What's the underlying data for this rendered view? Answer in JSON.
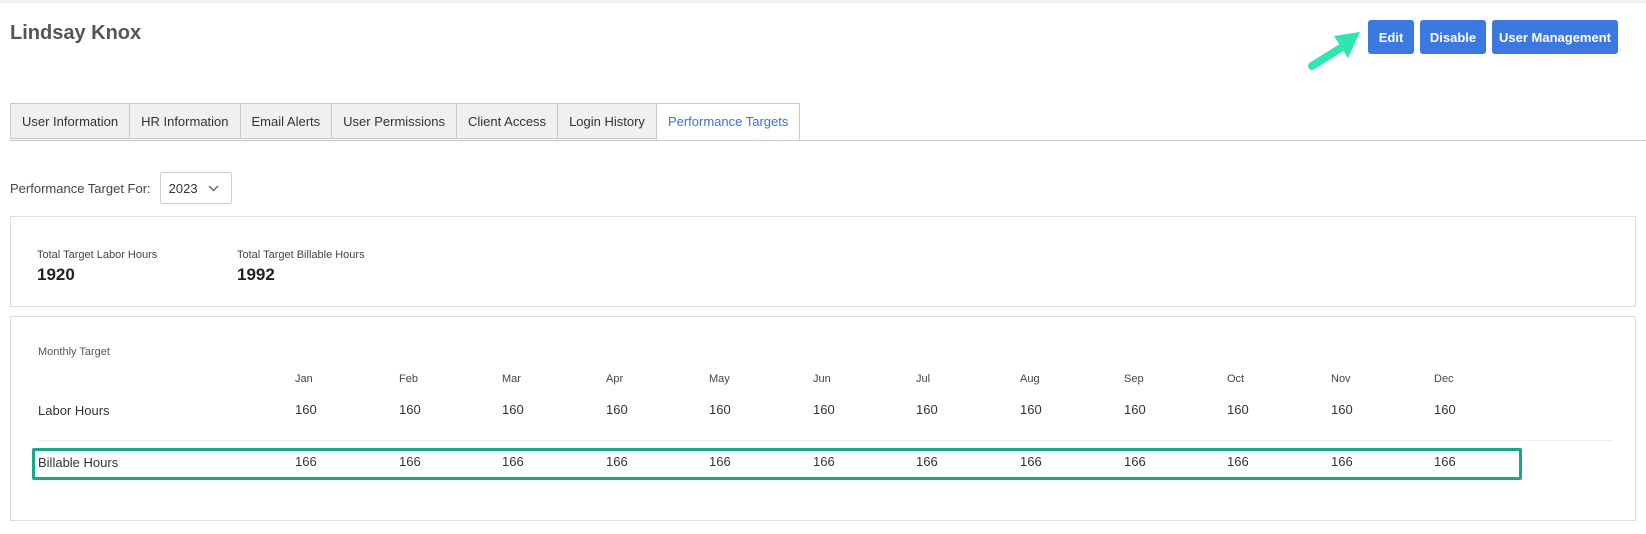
{
  "header": {
    "title": "Lindsay Knox"
  },
  "actions": {
    "edit": "Edit",
    "disable": "Disable",
    "user_management": "User Management"
  },
  "tabs": [
    {
      "label": "User Information"
    },
    {
      "label": "HR Information"
    },
    {
      "label": "Email Alerts"
    },
    {
      "label": "User Permissions"
    },
    {
      "label": "Client Access"
    },
    {
      "label": "Login History"
    },
    {
      "label": "Performance Targets",
      "active": true
    }
  ],
  "filter": {
    "label": "Performance Target For:",
    "year": "2023"
  },
  "totals": {
    "labor_label": "Total Target Labor Hours",
    "labor_value": "1920",
    "billable_label": "Total Target Billable Hours",
    "billable_value": "1992"
  },
  "monthly": {
    "label": "Monthly Target",
    "months": [
      "Jan",
      "Feb",
      "Mar",
      "Apr",
      "May",
      "Jun",
      "Jul",
      "Aug",
      "Sep",
      "Oct",
      "Nov",
      "Dec"
    ],
    "rows": [
      {
        "label": "Labor Hours",
        "values": [
          "160",
          "160",
          "160",
          "160",
          "160",
          "160",
          "160",
          "160",
          "160",
          "160",
          "160",
          "160"
        ]
      },
      {
        "label": "Billable Hours",
        "values": [
          "166",
          "166",
          "166",
          "166",
          "166",
          "166",
          "166",
          "166",
          "166",
          "166",
          "166",
          "166"
        ]
      }
    ]
  },
  "colors": {
    "accent": "#3b78e0",
    "active_tab": "#3a76c4",
    "highlight": "#1aa68b",
    "arrow": "#2ee6b0"
  }
}
